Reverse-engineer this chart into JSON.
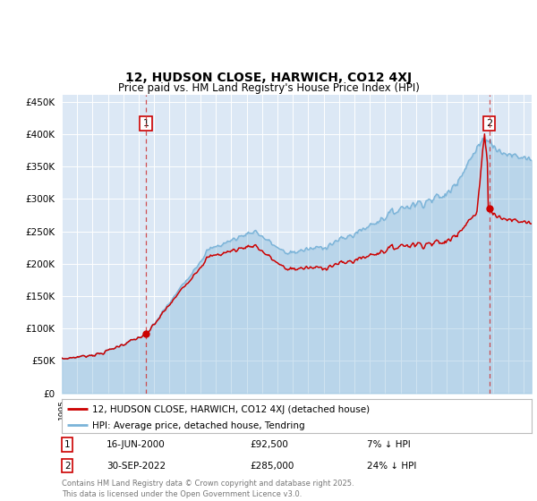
{
  "title": "12, HUDSON CLOSE, HARWICH, CO12 4XJ",
  "subtitle": "Price paid vs. HM Land Registry's House Price Index (HPI)",
  "legend_entry1": "12, HUDSON CLOSE, HARWICH, CO12 4XJ (detached house)",
  "legend_entry2": "HPI: Average price, detached house, Tendring",
  "annotation1_date": "16-JUN-2000",
  "annotation1_price": 92500,
  "annotation1_note": "7% ↓ HPI",
  "annotation2_date": "30-SEP-2022",
  "annotation2_price": 285000,
  "annotation2_note": "24% ↓ HPI",
  "footer": "Contains HM Land Registry data © Crown copyright and database right 2025.\nThis data is licensed under the Open Government Licence v3.0.",
  "ylim": [
    0,
    460000
  ],
  "yticks": [
    0,
    50000,
    100000,
    150000,
    200000,
    250000,
    300000,
    350000,
    400000,
    450000
  ],
  "hpi_color": "#7ab3d8",
  "price_color": "#cc0000",
  "background_color": "#dce8f5",
  "sale1_year": 2000.46,
  "sale2_year": 2022.75,
  "start_year": 1995.0,
  "end_year": 2025.5
}
